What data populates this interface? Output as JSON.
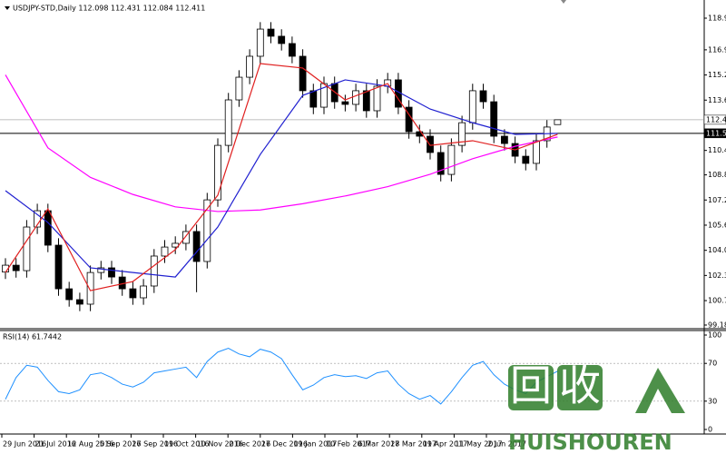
{
  "chart_data": {
    "type": "candlestick",
    "title": "USDJPY-STD,Daily  112.098 112.431 112.084 112.411",
    "ylim": [
      98.95,
      120.125
    ],
    "yticks": [
      118.955,
      116.915,
      115.295,
      113.675,
      110.435,
      {
        "value": 108.86,
        "label": "108.860"
      },
      {
        "value": 107.24,
        "label": "107.240"
      },
      105.62,
      {
        "value": 104.0,
        "label": "104.000"
      },
      102.38,
      100.76,
      99.185
    ],
    "price_lines": [
      112.411,
      111.537
    ],
    "x_labels": [
      "29 Jun 2016",
      "21 Jul 2016",
      "12 Aug 2016",
      "5 Sep 2016",
      "27 Sep 2016",
      "19 Oct 2016",
      "10 Nov 2016",
      "2 Dec 2016",
      "27 Dec 2016",
      "19 Jan 2017",
      "10 Feb 2017",
      "6 Mar 2017",
      "28 Mar 2017",
      "19 Apr 2017",
      "11 May 2017",
      "2 Jun 2017"
    ],
    "open": [
      102.6,
      103.04,
      102.69,
      105.5,
      106.55,
      104.33,
      101.52,
      100.82,
      100.53,
      102.57,
      102.87,
      102.28,
      101.52,
      100.94,
      101.7,
      103.63,
      104.21,
      104.45,
      105.21,
      103.28,
      107.25,
      110.76,
      113.69,
      115.15,
      116.5,
      118.25,
      117.79,
      117.32,
      116.5,
      114.28,
      113.22,
      114.74,
      113.57,
      113.4,
      114.28,
      112.99,
      114.57,
      114.98,
      113.22,
      111.64,
      111.35,
      110.3,
      108.89,
      110.76,
      112.22,
      114.28,
      113.57,
      111.35,
      110.88,
      110.06,
      109.6,
      111.06,
      112.098
    ],
    "high": [
      103.49,
      103.49,
      105.95,
      107.0,
      107.0,
      104.78,
      101.97,
      101.27,
      103.02,
      103.32,
      103.32,
      102.73,
      101.97,
      102.15,
      104.08,
      104.66,
      104.9,
      105.66,
      105.66,
      107.7,
      111.21,
      114.14,
      115.6,
      116.95,
      118.7,
      118.7,
      118.24,
      117.77,
      116.95,
      114.73,
      115.19,
      115.19,
      114.02,
      114.73,
      114.73,
      115.02,
      115.43,
      115.43,
      113.67,
      112.09,
      111.8,
      110.75,
      111.21,
      112.67,
      114.73,
      114.73,
      114.02,
      111.8,
      111.33,
      110.51,
      111.51,
      112.39,
      112.431
    ],
    "low": [
      102.15,
      102.24,
      102.24,
      105.05,
      103.88,
      101.07,
      100.37,
      100.08,
      100.08,
      102.12,
      101.83,
      101.07,
      100.49,
      100.49,
      101.25,
      103.18,
      103.76,
      104.0,
      101.3,
      102.83,
      106.8,
      110.31,
      113.24,
      114.7,
      116.05,
      117.34,
      116.87,
      116.05,
      113.83,
      112.77,
      112.77,
      113.12,
      112.95,
      112.95,
      112.54,
      112.54,
      114.12,
      112.77,
      111.19,
      110.9,
      109.85,
      108.44,
      108.44,
      110.31,
      111.77,
      113.12,
      110.9,
      110.43,
      109.61,
      109.15,
      109.15,
      110.61,
      112.084
    ],
    "close": [
      103.04,
      102.69,
      105.5,
      106.55,
      104.33,
      101.52,
      100.82,
      100.53,
      102.57,
      102.87,
      102.28,
      101.52,
      100.94,
      101.7,
      103.63,
      104.21,
      104.45,
      105.21,
      103.28,
      107.25,
      110.76,
      113.69,
      115.15,
      116.5,
      118.25,
      117.79,
      117.32,
      116.5,
      114.28,
      113.22,
      114.74,
      113.57,
      113.4,
      114.28,
      112.99,
      114.57,
      114.98,
      113.22,
      111.64,
      111.35,
      110.3,
      108.89,
      110.76,
      112.22,
      114.28,
      113.57,
      111.35,
      110.88,
      110.06,
      109.6,
      111.06,
      111.94,
      112.411
    ],
    "series": [
      {
        "color": "#ff00ff",
        "x": [
          0,
          4,
          8,
          12,
          16,
          20,
          24,
          28,
          32,
          36,
          40,
          44,
          48,
          52
        ],
        "values": [
          115.3,
          110.6,
          108.7,
          107.6,
          106.8,
          106.5,
          106.6,
          107.0,
          107.5,
          108.1,
          108.9,
          109.9,
          110.7,
          111.3
        ]
      },
      {
        "color": "#2020d0",
        "x": [
          0,
          4,
          8,
          12,
          16,
          20,
          24,
          28,
          32,
          36,
          40,
          44,
          48,
          52
        ],
        "values": [
          107.84,
          105.79,
          102.87,
          102.57,
          102.28,
          105.5,
          110.18,
          113.98,
          114.98,
          114.57,
          113.1,
          112.22,
          111.47,
          111.53
        ]
      },
      {
        "color": "#e02020",
        "x": [
          0,
          4,
          8,
          12,
          16,
          20,
          24,
          28,
          32,
          36,
          40,
          44,
          48,
          52
        ],
        "values": [
          102.57,
          106.67,
          101.4,
          101.99,
          104.04,
          107.55,
          116.03,
          115.74,
          113.69,
          114.74,
          110.76,
          111.06,
          110.47,
          111.47
        ]
      }
    ],
    "rsi": {
      "label": "RSI(14) 61.7442",
      "color": "#1e90ff",
      "ylim": [
        0,
        100
      ],
      "yticks": [
        100,
        70,
        30,
        0
      ],
      "levels": [
        70,
        30
      ],
      "values": [
        32,
        55,
        68,
        66,
        52,
        40,
        38,
        42,
        58,
        60,
        55,
        48,
        45,
        50,
        60,
        62,
        64,
        66,
        55,
        72,
        82,
        86,
        80,
        77,
        85,
        82,
        75,
        58,
        42,
        47,
        55,
        58,
        56,
        57,
        54,
        60,
        62,
        48,
        38,
        32,
        36,
        27,
        40,
        55,
        68,
        72,
        58,
        48,
        42,
        38,
        50,
        56,
        61.7442
      ]
    }
  },
  "watermark": {
    "text": "回收",
    "subtext": "HUISHOUREN"
  }
}
